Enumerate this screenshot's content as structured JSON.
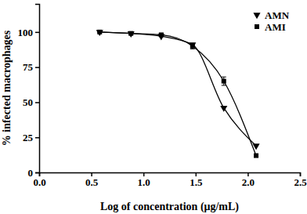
{
  "chart_data": {
    "type": "scatter",
    "x_label": "Log of concentration (μg/mL)",
    "y_label": "% infected macrophages",
    "x": [
      0.58,
      0.88,
      1.17,
      1.47,
      1.77,
      2.08
    ],
    "series": [
      {
        "name": "AMN",
        "color": "#000000",
        "marker": "triangle-down",
        "line_style": "solid",
        "values": [
          100,
          99,
          97,
          91,
          46,
          19
        ]
      },
      {
        "name": "AMI",
        "color": "#000000",
        "marker": "square",
        "line_style": "solid",
        "values": [
          100,
          99,
          98,
          90,
          65,
          12
        ],
        "errors": [
          0,
          1,
          1,
          2,
          3,
          1
        ]
      }
    ],
    "xlim": [
      0,
      2.5
    ],
    "xticks": [
      {
        "value": 0,
        "label": "0.0"
      },
      0.5,
      {
        "value": 1,
        "label": "1.0"
      },
      1.5,
      {
        "value": 2,
        "label": "2.0"
      },
      2.5
    ],
    "ylim": [
      0,
      120
    ],
    "yticks": [
      0,
      25,
      50,
      75,
      100
    ],
    "legend": "upper right"
  }
}
